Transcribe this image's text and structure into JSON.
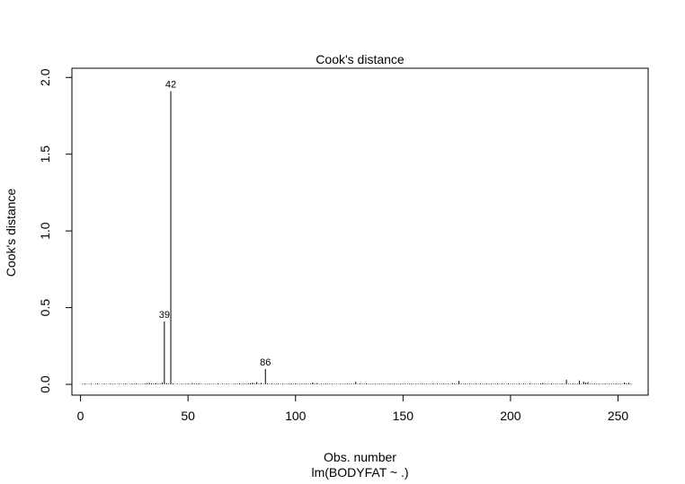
{
  "chart_data": {
    "type": "bar",
    "title": "Cook's distance",
    "xlabel": "Obs. number",
    "sublabel": "lm(BODYFAT ~ .)",
    "ylabel": "Cook's distance",
    "xlim": [
      -4,
      264
    ],
    "ylim": [
      -0.07,
      2.06
    ],
    "x_ticks": [
      0,
      50,
      100,
      150,
      200,
      250
    ],
    "y_ticks": [
      0.0,
      0.5,
      1.0,
      1.5,
      2.0
    ],
    "y_tick_labels": [
      "0.0",
      "0.5",
      "1.0",
      "1.5",
      "2.0"
    ],
    "n_obs": 252,
    "values": [
      0.004,
      0.006,
      0.002,
      0.003,
      0.005,
      0.001,
      0.004,
      0.007,
      0.002,
      0.003,
      0.005,
      0.004,
      0.002,
      0.006,
      0.003,
      0.004,
      0.002,
      0.005,
      0.003,
      0.004,
      0.006,
      0.002,
      0.003,
      0.005,
      0.004,
      0.007,
      0.003,
      0.002,
      0.004,
      0.005,
      0.008,
      0.01,
      0.006,
      0.005,
      0.009,
      0.004,
      0.006,
      0.012,
      0.41,
      0.008,
      0.005,
      1.91,
      0.006,
      0.003,
      0.004,
      0.002,
      0.005,
      0.003,
      0.004,
      0.006,
      0.002,
      0.008,
      0.005,
      0.004,
      0.007,
      0.003,
      0.002,
      0.004,
      0.003,
      0.005,
      0.002,
      0.004,
      0.003,
      0.006,
      0.002,
      0.004,
      0.003,
      0.005,
      0.004,
      0.002,
      0.003,
      0.005,
      0.004,
      0.006,
      0.003,
      0.005,
      0.004,
      0.007,
      0.008,
      0.012,
      0.006,
      0.015,
      0.005,
      0.01,
      0.004,
      0.1,
      0.006,
      0.004,
      0.005,
      0.003,
      0.004,
      0.006,
      0.002,
      0.005,
      0.003,
      0.004,
      0.005,
      0.006,
      0.003,
      0.007,
      0.004,
      0.003,
      0.005,
      0.004,
      0.006,
      0.003,
      0.005,
      0.012,
      0.004,
      0.008,
      0.003,
      0.005,
      0.004,
      0.006,
      0.003,
      0.004,
      0.005,
      0.003,
      0.004,
      0.002,
      0.005,
      0.003,
      0.004,
      0.006,
      0.003,
      0.005,
      0.004,
      0.016,
      0.003,
      0.005,
      0.004,
      0.003,
      0.006,
      0.004,
      0.003,
      0.005,
      0.004,
      0.003,
      0.006,
      0.004,
      0.005,
      0.003,
      0.004,
      0.006,
      0.003,
      0.005,
      0.004,
      0.003,
      0.006,
      0.004,
      0.005,
      0.003,
      0.004,
      0.006,
      0.003,
      0.005,
      0.004,
      0.003,
      0.006,
      0.004,
      0.005,
      0.003,
      0.004,
      0.006,
      0.003,
      0.005,
      0.004,
      0.003,
      0.006,
      0.004,
      0.005,
      0.003,
      0.008,
      0.006,
      0.004,
      0.022,
      0.005,
      0.003,
      0.006,
      0.004,
      0.005,
      0.003,
      0.004,
      0.006,
      0.003,
      0.005,
      0.004,
      0.003,
      0.006,
      0.004,
      0.005,
      0.003,
      0.004,
      0.006,
      0.003,
      0.005,
      0.004,
      0.003,
      0.006,
      0.004,
      0.005,
      0.003,
      0.004,
      0.006,
      0.003,
      0.005,
      0.004,
      0.003,
      0.006,
      0.004,
      0.005,
      0.003,
      0.004,
      0.006,
      0.01,
      0.005,
      0.004,
      0.003,
      0.006,
      0.004,
      0.005,
      0.003,
      0.004,
      0.006,
      0.003,
      0.03,
      0.004,
      0.003,
      0.006,
      0.004,
      0.005,
      0.025,
      0.004,
      0.018,
      0.012,
      0.015,
      0.004,
      0.003,
      0.006,
      0.004,
      0.005,
      0.003,
      0.004,
      0.006,
      0.003,
      0.005,
      0.004,
      0.003,
      0.006,
      0.004,
      0.005,
      0.003,
      0.012,
      0.006,
      0.01,
      0.005
    ],
    "labeled_points": [
      {
        "x": 39,
        "label": "39"
      },
      {
        "x": 42,
        "label": "42"
      },
      {
        "x": 86,
        "label": "86"
      }
    ]
  }
}
